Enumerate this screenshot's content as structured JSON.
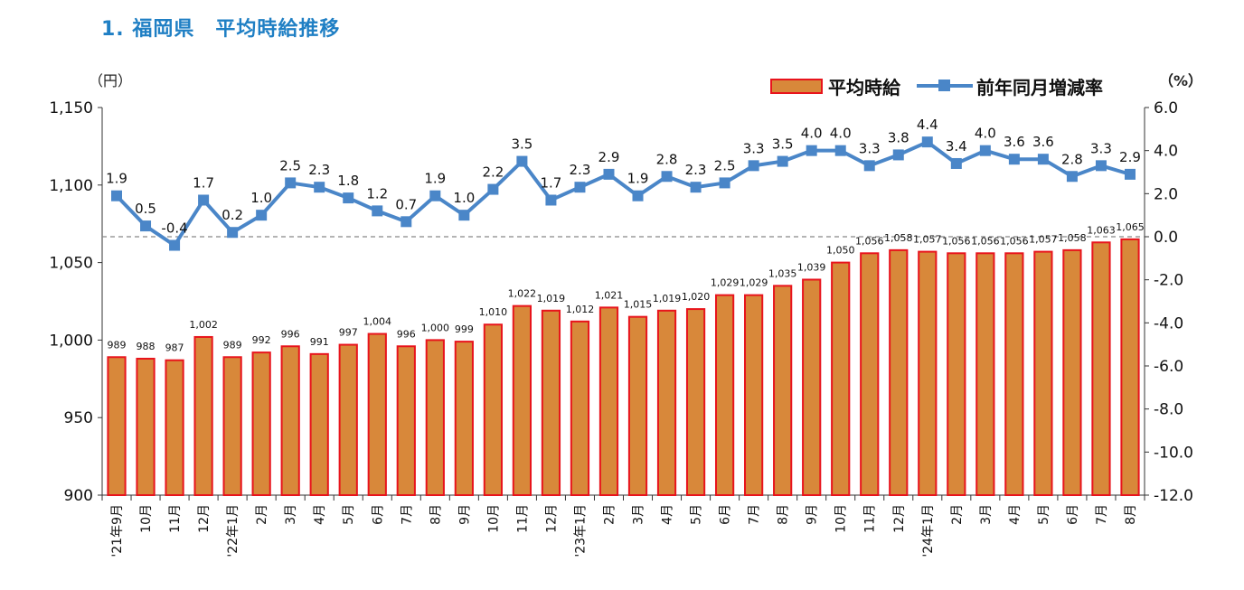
{
  "title": "1. 福岡県　平均時給推移",
  "left_axis_unit": "（円）",
  "right_axis_unit": "（%）",
  "legend": {
    "bar": "平均時給",
    "line": "前年同月増減率"
  },
  "colors": {
    "bar_fill": "#d8883a",
    "bar_stroke": "#e8141c",
    "line": "#4a86c8",
    "title": "#1f7fc4"
  },
  "chart_data": {
    "type": "bar+line",
    "categories": [
      "'21年9月",
      "10月",
      "11月",
      "12月",
      "'22年1月",
      "2月",
      "3月",
      "4月",
      "5月",
      "6月",
      "7月",
      "8月",
      "9月",
      "10月",
      "11月",
      "12月",
      "'23年1月",
      "2月",
      "3月",
      "4月",
      "5月",
      "6月",
      "7月",
      "8月",
      "9月",
      "10月",
      "11月",
      "12月",
      "'24年1月",
      "2月",
      "3月",
      "4月",
      "5月",
      "6月",
      "7月",
      "8月"
    ],
    "series": [
      {
        "name": "平均時給",
        "type": "bar",
        "axis": "left",
        "values": [
          989,
          988,
          987,
          1002,
          989,
          992,
          996,
          991,
          997,
          1004,
          996,
          1000,
          999,
          1010,
          1022,
          1019,
          1012,
          1021,
          1015,
          1019,
          1020,
          1029,
          1029,
          1035,
          1039,
          1050,
          1056,
          1058,
          1057,
          1056,
          1056,
          1056,
          1057,
          1058,
          1063,
          1065
        ],
        "labels": [
          "989",
          "988",
          "987",
          "1,002",
          "989",
          "992",
          "996",
          "991",
          "997",
          "1,004",
          "996",
          "1,000",
          "999",
          "1,010",
          "1,022",
          "1,019",
          "1,012",
          "1,021",
          "1,015",
          "1,019",
          "1,020",
          "1,029",
          "1,029",
          "1,035",
          "1,039",
          "1,050",
          "1,056",
          "1,058",
          "1,057",
          "1,056",
          "1,056",
          "1,056",
          "1,057",
          "1,058",
          "1,063",
          "1,065"
        ]
      },
      {
        "name": "前年同月増減率",
        "type": "line",
        "axis": "right",
        "values": [
          1.9,
          0.5,
          -0.4,
          1.7,
          0.2,
          1.0,
          2.5,
          2.3,
          1.8,
          1.2,
          0.7,
          1.9,
          1.0,
          2.2,
          3.5,
          1.7,
          2.3,
          2.9,
          1.9,
          2.8,
          2.3,
          2.5,
          3.3,
          3.5,
          4.0,
          4.0,
          3.3,
          3.8,
          4.4,
          3.4,
          4.0,
          3.6,
          3.6,
          2.8,
          3.3,
          2.9
        ],
        "labels": [
          "1.9",
          "0.5",
          "-0.4",
          "1.7",
          "0.2",
          "1.0",
          "2.5",
          "2.3",
          "1.8",
          "1.2",
          "0.7",
          "1.9",
          "1.0",
          "2.2",
          "3.5",
          "1.7",
          "2.3",
          "2.9",
          "1.9",
          "2.8",
          "2.3",
          "2.5",
          "3.3",
          "3.5",
          "4.0",
          "4.0",
          "3.3",
          "3.8",
          "4.4",
          "3.4",
          "4.0",
          "3.6",
          "3.6",
          "2.8",
          "3.3",
          "2.9"
        ]
      }
    ],
    "y_left": {
      "min": 900,
      "max": 1150,
      "ticks": [
        900,
        950,
        1000,
        1050,
        1100,
        1150
      ],
      "tick_labels": [
        "900",
        "950",
        "1,000",
        "1,050",
        "1,100",
        "1,150"
      ]
    },
    "y_right": {
      "min": -12,
      "max": 6,
      "ticks": [
        -12,
        -10,
        -8,
        -6,
        -4,
        -2,
        0,
        2,
        4,
        6
      ],
      "tick_labels": [
        "-12.0",
        "-10.0",
        "-8.0",
        "-6.0",
        "-4.0",
        "-2.0",
        "0.0",
        "2.0",
        "4.0",
        "6.0"
      ]
    },
    "zero_reference_line": true
  }
}
